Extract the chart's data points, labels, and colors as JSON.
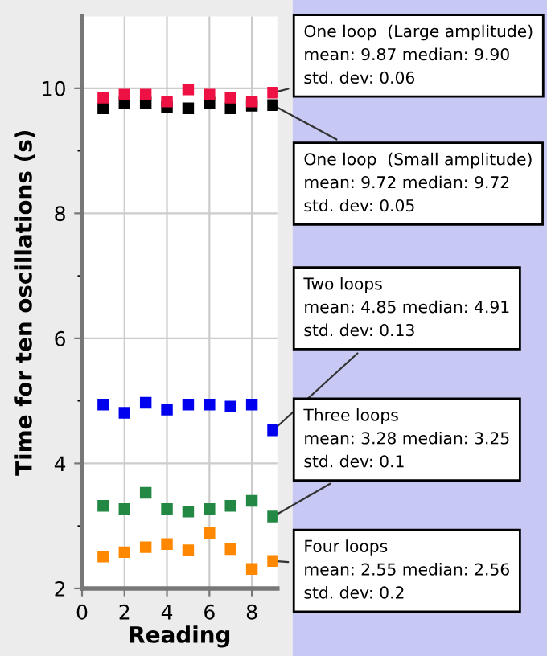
{
  "chart_data": {
    "type": "scatter",
    "xlabel": "Reading",
    "ylabel": "Time for ten oscillations (s)",
    "x": [
      1,
      2,
      3,
      4,
      5,
      6,
      7,
      8,
      9
    ],
    "xlim": [
      0,
      9.2
    ],
    "xticks": [
      0,
      2,
      4,
      6,
      8
    ],
    "ylim": [
      2,
      11.15
    ],
    "yticks": [
      2,
      {
        "value": 3,
        "label": null
      },
      4,
      {
        "value": 5,
        "label": null
      },
      6,
      {
        "value": 7,
        "label": null
      },
      8,
      {
        "value": 9,
        "label": null
      },
      10
    ],
    "grid": true,
    "marker": "square",
    "legend": false,
    "series": [
      {
        "color": "#ee1144",
        "values": [
          9.85,
          9.9,
          9.9,
          9.79,
          9.98,
          9.9,
          9.85,
          9.79,
          9.93
        ]
      },
      {
        "color": "#000000",
        "values": [
          9.68,
          9.77,
          9.77,
          9.7,
          9.68,
          9.77,
          9.68,
          9.72,
          9.73
        ]
      },
      {
        "color": "#0000ee",
        "values": [
          4.94,
          4.81,
          4.97,
          4.86,
          4.94,
          4.94,
          4.91,
          4.94,
          4.53
        ]
      },
      {
        "color": "#228844",
        "values": [
          3.32,
          3.27,
          3.53,
          3.27,
          3.23,
          3.27,
          3.32,
          3.4,
          3.15
        ]
      },
      {
        "color": "#ff8800",
        "values": [
          2.51,
          2.58,
          2.66,
          2.71,
          2.61,
          2.89,
          2.63,
          2.31,
          2.44
        ]
      }
    ],
    "annotations": [
      "One loop  (Large amplitude)\nmean: 9.87 median: 9.90\nstd. dev: 0.06",
      "One loop  (Small amplitude)\nmean: 9.72 median: 9.72\nstd. dev: 0.05",
      "Two loops\nmean: 4.85 median: 4.91\nstd. dev: 0.13",
      "Three loops\nmean: 3.28 median: 3.25\nstd. dev: 0.1",
      "Four loops\nmean: 2.55 median: 2.56\nstd. dev: 0.2"
    ]
  }
}
